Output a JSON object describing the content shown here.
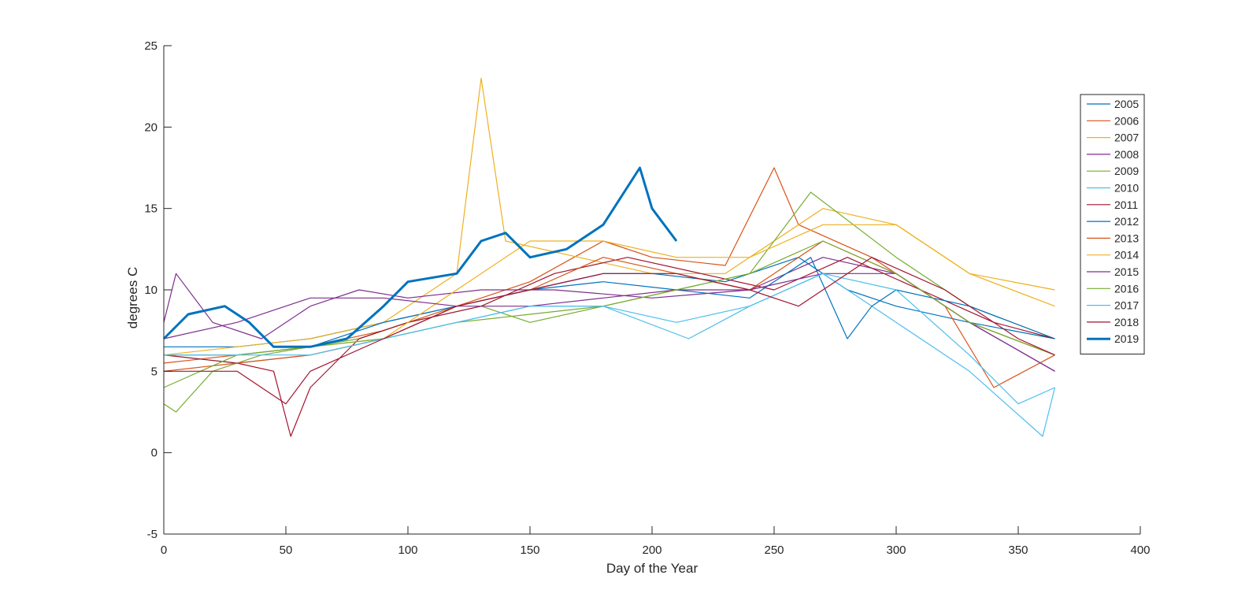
{
  "chart_data": {
    "type": "line",
    "title": "",
    "xlabel": "Day of the Year",
    "ylabel": "degrees C",
    "xlim": [
      0,
      400
    ],
    "ylim": [
      -5,
      25
    ],
    "xticks": [
      0,
      50,
      100,
      150,
      200,
      250,
      300,
      350,
      400
    ],
    "yticks": [
      -5,
      0,
      5,
      10,
      15,
      20,
      25
    ],
    "xtick_labels": [
      "0",
      "50",
      "100",
      "150",
      "200",
      "250",
      "300",
      "350",
      "400"
    ],
    "ytick_labels": [
      "-5",
      "0",
      "5",
      "10",
      "15",
      "20",
      "25"
    ],
    "grid": false,
    "legend_position": "top-right",
    "series": [
      {
        "name": "2005",
        "color": "#0072BD",
        "x": [
          0,
          30,
          60,
          90,
          120,
          150,
          180,
          200,
          230,
          260,
          280,
          300,
          330,
          365
        ],
        "y": [
          6.5,
          6.5,
          7,
          8,
          9,
          10,
          11,
          11,
          10.5,
          12,
          10,
          9,
          8,
          7
        ]
      },
      {
        "name": "2006",
        "color": "#D95319",
        "x": [
          0,
          30,
          60,
          90,
          120,
          150,
          180,
          200,
          230,
          250,
          260,
          290,
          320,
          340,
          365
        ],
        "y": [
          5.5,
          6,
          6.5,
          7.5,
          9,
          10.5,
          13,
          12,
          11.5,
          17.5,
          14,
          12,
          9,
          4,
          6
        ]
      },
      {
        "name": "2007",
        "color": "#EDB120",
        "x": [
          0,
          30,
          60,
          90,
          120,
          130,
          140,
          170,
          200,
          230,
          270,
          300,
          330,
          365
        ],
        "y": [
          6,
          6.5,
          7,
          8,
          11,
          23,
          13,
          12,
          11,
          11,
          15,
          14,
          11,
          9
        ]
      },
      {
        "name": "2008",
        "color": "#7E2F8E",
        "x": [
          0,
          5,
          20,
          40,
          60,
          80,
          100,
          130,
          160,
          200,
          240,
          270,
          300,
          330,
          365
        ],
        "y": [
          8,
          11,
          8,
          7,
          9,
          10,
          9.5,
          10,
          10,
          9.5,
          10,
          12,
          11,
          8,
          5
        ]
      },
      {
        "name": "2009",
        "color": "#77AC30",
        "x": [
          0,
          5,
          20,
          40,
          60,
          80,
          100,
          130,
          150,
          180,
          210,
          240,
          265,
          300,
          330,
          365
        ],
        "y": [
          3,
          2.5,
          5,
          6,
          6.5,
          7,
          8,
          9,
          8,
          9,
          10,
          11,
          16,
          12,
          9,
          7
        ]
      },
      {
        "name": "2010",
        "color": "#4DBEEE",
        "x": [
          0,
          30,
          60,
          90,
          120,
          150,
          180,
          215,
          240,
          270,
          300,
          330,
          345,
          360,
          365
        ],
        "y": [
          6,
          5.5,
          6,
          7,
          8,
          9,
          9,
          7,
          9,
          11,
          8,
          5,
          3,
          1,
          4
        ]
      },
      {
        "name": "2011",
        "color": "#A2142F",
        "x": [
          0,
          30,
          45,
          52,
          60,
          80,
          100,
          130,
          160,
          190,
          220,
          250,
          280,
          310,
          340,
          365
        ],
        "y": [
          6,
          5.5,
          5,
          1,
          4,
          7,
          8,
          9,
          11,
          12,
          11,
          10,
          12,
          10,
          8,
          7
        ]
      },
      {
        "name": "2012",
        "color": "#0072BD",
        "x": [
          0,
          30,
          60,
          90,
          120,
          150,
          180,
          210,
          240,
          265,
          280,
          290,
          300,
          330,
          365
        ],
        "y": [
          6,
          6,
          6.5,
          8,
          9,
          10,
          10.5,
          10,
          9.5,
          12,
          7,
          9,
          10,
          9,
          7
        ]
      },
      {
        "name": "2013",
        "color": "#D95319",
        "x": [
          0,
          30,
          60,
          90,
          120,
          150,
          180,
          210,
          240,
          260,
          270,
          300,
          330,
          365
        ],
        "y": [
          5,
          5.5,
          6,
          7,
          9,
          10,
          12,
          11,
          10,
          12,
          13,
          11,
          8,
          6
        ]
      },
      {
        "name": "2014",
        "color": "#EDB120",
        "x": [
          0,
          30,
          60,
          90,
          120,
          150,
          180,
          210,
          240,
          270,
          300,
          330,
          365
        ],
        "y": [
          6,
          6,
          6.5,
          7,
          10,
          13,
          13,
          12,
          12,
          14,
          14,
          11,
          10
        ]
      },
      {
        "name": "2015",
        "color": "#7E2F8E",
        "x": [
          0,
          30,
          60,
          90,
          120,
          150,
          180,
          210,
          240,
          270,
          300,
          330,
          365
        ],
        "y": [
          7,
          8,
          9.5,
          9.5,
          9,
          9,
          9.5,
          10,
          10,
          11,
          11,
          8,
          5
        ]
      },
      {
        "name": "2016",
        "color": "#77AC30",
        "x": [
          0,
          30,
          60,
          90,
          120,
          150,
          180,
          210,
          240,
          270,
          300,
          330,
          365
        ],
        "y": [
          4,
          6,
          6.5,
          7,
          8,
          8.5,
          9,
          10,
          11,
          13,
          11,
          8,
          6
        ]
      },
      {
        "name": "2017",
        "color": "#4DBEEE",
        "x": [
          0,
          30,
          60,
          90,
          120,
          150,
          180,
          210,
          240,
          270,
          300,
          330,
          350,
          365
        ],
        "y": [
          6,
          6,
          6,
          7,
          8,
          9,
          9,
          8,
          9,
          11,
          10,
          6,
          3,
          4
        ]
      },
      {
        "name": "2018",
        "color": "#A2142F",
        "x": [
          0,
          30,
          50,
          60,
          90,
          120,
          150,
          180,
          210,
          240,
          260,
          290,
          320,
          350,
          365
        ],
        "y": [
          5,
          5,
          3,
          5,
          7,
          9,
          10,
          11,
          11,
          10,
          9,
          12,
          10,
          7,
          6
        ]
      },
      {
        "name": "2019",
        "color": "#0072BD",
        "x": [
          0,
          10,
          25,
          35,
          45,
          60,
          75,
          90,
          100,
          120,
          130,
          140,
          150,
          165,
          180,
          195,
          200,
          210
        ],
        "y": [
          7,
          8.5,
          9,
          8,
          6.5,
          6.5,
          7,
          9,
          10.5,
          11,
          13,
          13.5,
          12,
          12.5,
          14,
          17.5,
          15,
          13
        ]
      }
    ]
  }
}
